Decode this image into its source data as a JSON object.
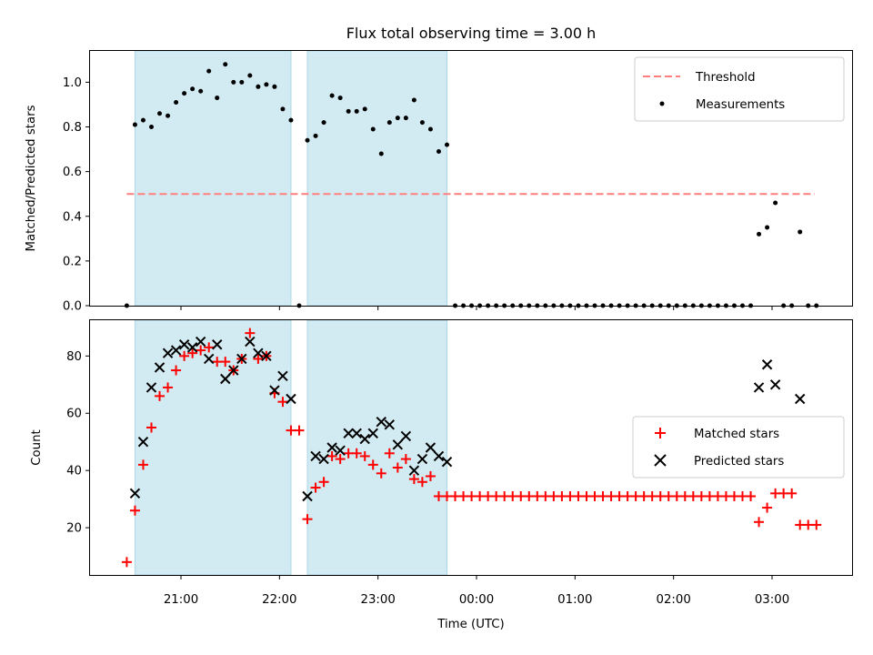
{
  "figure": {
    "title": "Flux total observing time = 3.00 h",
    "xlabel": "Time (UTC)",
    "x_tick_labels": [
      "21:00",
      "22:00",
      "23:00",
      "00:00",
      "01:00",
      "02:00",
      "03:00"
    ],
    "shaded_color": "#add8e6",
    "threshold_color": "#ff7f7f",
    "matched_color": "#ff0000",
    "predicted_color": "#000000",
    "measurement_color": "#000000"
  },
  "chart_data": [
    {
      "type": "scatter",
      "panel": "top",
      "ylabel": "Matched/Predicted stars",
      "ylim": [
        0,
        1.14
      ],
      "y_ticks": [
        "0.0",
        "0.2",
        "0.4",
        "0.6",
        "0.8",
        "1.0"
      ],
      "legend": {
        "placement": "top-right",
        "entries": [
          "Threshold",
          "Measurements"
        ]
      },
      "shaded_intervals": [
        [
          "20:32",
          "22:07"
        ],
        [
          "22:17",
          "23:42"
        ]
      ],
      "threshold": {
        "name": "Threshold",
        "y": 0.5,
        "x_range": [
          "20:27",
          "03:26"
        ]
      },
      "series": [
        {
          "name": "Measurements",
          "x": [
            "20:27",
            "20:32",
            "20:37",
            "20:42",
            "20:47",
            "20:52",
            "20:57",
            "21:02",
            "21:07",
            "21:12",
            "21:17",
            "21:22",
            "21:27",
            "21:32",
            "21:37",
            "21:42",
            "21:47",
            "21:52",
            "21:57",
            "22:02",
            "22:07",
            "22:12",
            "22:17",
            "22:22",
            "22:27",
            "22:32",
            "22:37",
            "22:42",
            "22:47",
            "22:52",
            "22:57",
            "23:02",
            "23:07",
            "23:12",
            "23:17",
            "23:22",
            "23:27",
            "23:32",
            "23:37",
            "23:42",
            "23:47",
            "23:52",
            "23:57",
            "00:02",
            "00:07",
            "00:12",
            "00:17",
            "00:22",
            "00:27",
            "00:32",
            "00:37",
            "00:42",
            "00:47",
            "00:52",
            "00:57",
            "01:02",
            "01:07",
            "01:12",
            "01:17",
            "01:22",
            "01:27",
            "01:32",
            "01:37",
            "01:42",
            "01:47",
            "01:52",
            "01:57",
            "02:02",
            "02:07",
            "02:12",
            "02:17",
            "02:22",
            "02:27",
            "02:32",
            "02:37",
            "02:42",
            "02:47",
            "02:52",
            "02:57",
            "03:02",
            "03:07",
            "03:12",
            "03:17",
            "03:22",
            "03:27"
          ],
          "y": [
            0.0,
            0.81,
            0.83,
            0.8,
            0.86,
            0.85,
            0.91,
            0.95,
            0.97,
            0.96,
            1.05,
            0.93,
            1.08,
            1.0,
            1.0,
            1.03,
            0.98,
            0.99,
            0.98,
            0.88,
            0.83,
            0.0,
            0.74,
            0.76,
            0.82,
            0.94,
            0.93,
            0.87,
            0.87,
            0.88,
            0.79,
            0.68,
            0.82,
            0.84,
            0.84,
            0.92,
            0.82,
            0.79,
            0.69,
            0.72,
            0.0,
            0.0,
            0.0,
            0.0,
            0.0,
            0.0,
            0.0,
            0.0,
            0.0,
            0.0,
            0.0,
            0.0,
            0.0,
            0.0,
            0.0,
            0.0,
            0.0,
            0.0,
            0.0,
            0.0,
            0.0,
            0.0,
            0.0,
            0.0,
            0.0,
            0.0,
            0.0,
            0.0,
            0.0,
            0.0,
            0.0,
            0.0,
            0.0,
            0.0,
            0.0,
            0.0,
            0.0,
            0.32,
            0.35,
            0.46,
            0.0,
            0.0,
            0.33,
            0.0,
            0.0
          ]
        }
      ]
    },
    {
      "type": "scatter",
      "panel": "bottom",
      "ylabel": "Count",
      "ylim": [
        3.5,
        92.5
      ],
      "y_ticks": [
        "20",
        "40",
        "60",
        "80"
      ],
      "legend": {
        "placement": "center-right",
        "entries": [
          "Matched stars",
          "Predicted stars"
        ]
      },
      "shaded_intervals": [
        [
          "20:32",
          "22:07"
        ],
        [
          "22:17",
          "23:42"
        ]
      ],
      "series": [
        {
          "name": "Matched stars",
          "marker": "+",
          "x": [
            "20:27",
            "20:32",
            "20:37",
            "20:42",
            "20:47",
            "20:52",
            "20:57",
            "21:02",
            "21:07",
            "21:12",
            "21:17",
            "21:22",
            "21:27",
            "21:32",
            "21:37",
            "21:42",
            "21:47",
            "21:52",
            "21:57",
            "22:02",
            "22:07",
            "22:12",
            "22:17",
            "22:22",
            "22:27",
            "22:32",
            "22:37",
            "22:42",
            "22:47",
            "22:52",
            "22:57",
            "23:02",
            "23:07",
            "23:12",
            "23:17",
            "23:22",
            "23:27",
            "23:32",
            "23:37",
            "23:42",
            "23:47",
            "23:52",
            "23:57",
            "00:02",
            "00:07",
            "00:12",
            "00:17",
            "00:22",
            "00:27",
            "00:32",
            "00:37",
            "00:42",
            "00:47",
            "00:52",
            "00:57",
            "01:02",
            "01:07",
            "01:12",
            "01:17",
            "01:22",
            "01:27",
            "01:32",
            "01:37",
            "01:42",
            "01:47",
            "01:52",
            "01:57",
            "02:02",
            "02:07",
            "02:12",
            "02:17",
            "02:22",
            "02:27",
            "02:32",
            "02:37",
            "02:42",
            "02:47",
            "02:52",
            "02:57",
            "03:02",
            "03:07",
            "03:12",
            "03:17",
            "03:22",
            "03:27"
          ],
          "y": [
            8,
            26,
            42,
            55,
            66,
            69,
            75,
            80,
            81,
            82,
            83,
            78,
            78,
            75,
            79,
            88,
            79,
            80,
            67,
            64,
            54,
            54,
            23,
            34,
            36,
            45,
            44,
            46,
            46,
            45,
            42,
            39,
            46,
            41,
            44,
            37,
            36,
            38,
            31,
            31,
            31,
            31,
            31,
            31,
            31,
            31,
            31,
            31,
            31,
            31,
            31,
            31,
            31,
            31,
            31,
            31,
            31,
            31,
            31,
            31,
            31,
            31,
            31,
            31,
            31,
            31,
            31,
            31,
            31,
            31,
            31,
            31,
            31,
            31,
            31,
            31,
            31,
            22,
            27,
            32,
            32,
            32,
            21,
            21,
            21
          ]
        },
        {
          "name": "Predicted stars",
          "marker": "x",
          "x": [
            "20:32",
            "20:37",
            "20:42",
            "20:47",
            "20:52",
            "20:57",
            "21:02",
            "21:07",
            "21:12",
            "21:17",
            "21:22",
            "21:27",
            "21:32",
            "21:37",
            "21:42",
            "21:47",
            "21:52",
            "21:57",
            "22:02",
            "22:07",
            "22:17",
            "22:22",
            "22:27",
            "22:32",
            "22:37",
            "22:42",
            "22:47",
            "22:52",
            "22:57",
            "23:02",
            "23:07",
            "23:12",
            "23:17",
            "23:22",
            "23:27",
            "23:32",
            "23:37",
            "23:42",
            "02:52",
            "02:57",
            "03:02",
            "03:17"
          ],
          "y": [
            32,
            50,
            69,
            76,
            81,
            82,
            84,
            83,
            85,
            79,
            84,
            72,
            75,
            79,
            85,
            81,
            80,
            68,
            73,
            65,
            31,
            45,
            44,
            48,
            47,
            53,
            53,
            51,
            53,
            57,
            56,
            49,
            52,
            40,
            44,
            48,
            45,
            43,
            69,
            77,
            70,
            65
          ]
        }
      ]
    }
  ]
}
